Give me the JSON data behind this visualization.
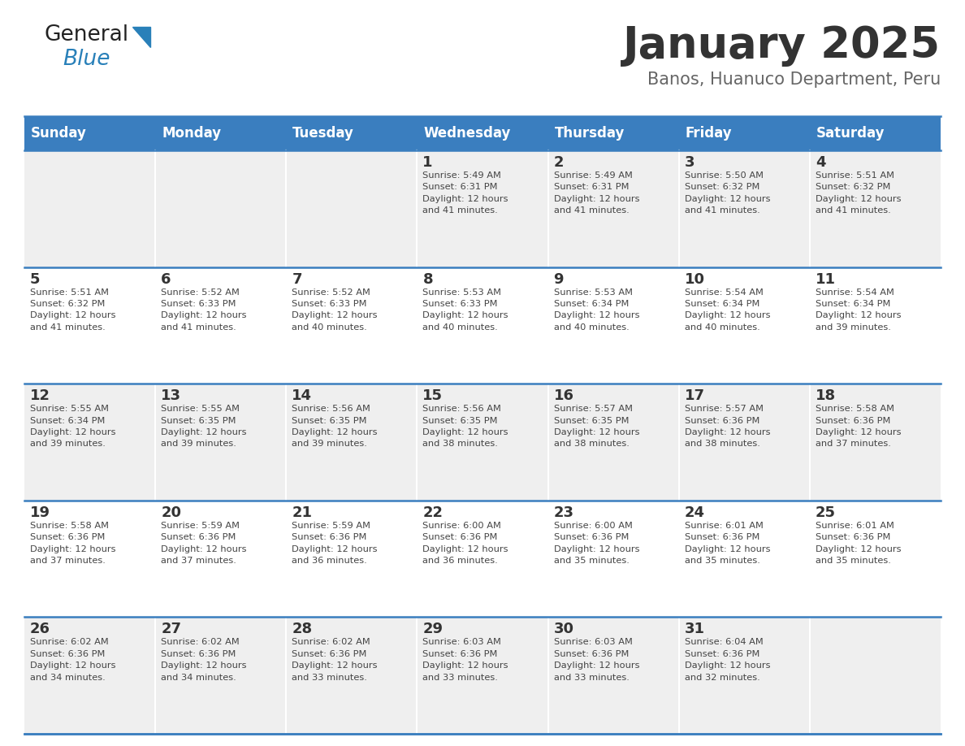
{
  "title": "January 2025",
  "subtitle": "Banos, Huanuco Department, Peru",
  "days_of_week": [
    "Sunday",
    "Monday",
    "Tuesday",
    "Wednesday",
    "Thursday",
    "Friday",
    "Saturday"
  ],
  "header_bg": "#3a7ebf",
  "header_text": "#ffffff",
  "row_bg_odd": "#efefef",
  "row_bg_even": "#ffffff",
  "separator_color": "#3a7ebf",
  "day_num_color": "#333333",
  "cell_text_color": "#444444",
  "title_color": "#333333",
  "subtitle_color": "#666666",
  "logo_general_color": "#222222",
  "logo_blue_color": "#2980b9",
  "logo_triangle_color": "#2980b9",
  "calendar_data": [
    [
      {
        "day": null,
        "info": null
      },
      {
        "day": null,
        "info": null
      },
      {
        "day": null,
        "info": null
      },
      {
        "day": 1,
        "info": "Sunrise: 5:49 AM\nSunset: 6:31 PM\nDaylight: 12 hours\nand 41 minutes."
      },
      {
        "day": 2,
        "info": "Sunrise: 5:49 AM\nSunset: 6:31 PM\nDaylight: 12 hours\nand 41 minutes."
      },
      {
        "day": 3,
        "info": "Sunrise: 5:50 AM\nSunset: 6:32 PM\nDaylight: 12 hours\nand 41 minutes."
      },
      {
        "day": 4,
        "info": "Sunrise: 5:51 AM\nSunset: 6:32 PM\nDaylight: 12 hours\nand 41 minutes."
      }
    ],
    [
      {
        "day": 5,
        "info": "Sunrise: 5:51 AM\nSunset: 6:32 PM\nDaylight: 12 hours\nand 41 minutes."
      },
      {
        "day": 6,
        "info": "Sunrise: 5:52 AM\nSunset: 6:33 PM\nDaylight: 12 hours\nand 41 minutes."
      },
      {
        "day": 7,
        "info": "Sunrise: 5:52 AM\nSunset: 6:33 PM\nDaylight: 12 hours\nand 40 minutes."
      },
      {
        "day": 8,
        "info": "Sunrise: 5:53 AM\nSunset: 6:33 PM\nDaylight: 12 hours\nand 40 minutes."
      },
      {
        "day": 9,
        "info": "Sunrise: 5:53 AM\nSunset: 6:34 PM\nDaylight: 12 hours\nand 40 minutes."
      },
      {
        "day": 10,
        "info": "Sunrise: 5:54 AM\nSunset: 6:34 PM\nDaylight: 12 hours\nand 40 minutes."
      },
      {
        "day": 11,
        "info": "Sunrise: 5:54 AM\nSunset: 6:34 PM\nDaylight: 12 hours\nand 39 minutes."
      }
    ],
    [
      {
        "day": 12,
        "info": "Sunrise: 5:55 AM\nSunset: 6:34 PM\nDaylight: 12 hours\nand 39 minutes."
      },
      {
        "day": 13,
        "info": "Sunrise: 5:55 AM\nSunset: 6:35 PM\nDaylight: 12 hours\nand 39 minutes."
      },
      {
        "day": 14,
        "info": "Sunrise: 5:56 AM\nSunset: 6:35 PM\nDaylight: 12 hours\nand 39 minutes."
      },
      {
        "day": 15,
        "info": "Sunrise: 5:56 AM\nSunset: 6:35 PM\nDaylight: 12 hours\nand 38 minutes."
      },
      {
        "day": 16,
        "info": "Sunrise: 5:57 AM\nSunset: 6:35 PM\nDaylight: 12 hours\nand 38 minutes."
      },
      {
        "day": 17,
        "info": "Sunrise: 5:57 AM\nSunset: 6:36 PM\nDaylight: 12 hours\nand 38 minutes."
      },
      {
        "day": 18,
        "info": "Sunrise: 5:58 AM\nSunset: 6:36 PM\nDaylight: 12 hours\nand 37 minutes."
      }
    ],
    [
      {
        "day": 19,
        "info": "Sunrise: 5:58 AM\nSunset: 6:36 PM\nDaylight: 12 hours\nand 37 minutes."
      },
      {
        "day": 20,
        "info": "Sunrise: 5:59 AM\nSunset: 6:36 PM\nDaylight: 12 hours\nand 37 minutes."
      },
      {
        "day": 21,
        "info": "Sunrise: 5:59 AM\nSunset: 6:36 PM\nDaylight: 12 hours\nand 36 minutes."
      },
      {
        "day": 22,
        "info": "Sunrise: 6:00 AM\nSunset: 6:36 PM\nDaylight: 12 hours\nand 36 minutes."
      },
      {
        "day": 23,
        "info": "Sunrise: 6:00 AM\nSunset: 6:36 PM\nDaylight: 12 hours\nand 35 minutes."
      },
      {
        "day": 24,
        "info": "Sunrise: 6:01 AM\nSunset: 6:36 PM\nDaylight: 12 hours\nand 35 minutes."
      },
      {
        "day": 25,
        "info": "Sunrise: 6:01 AM\nSunset: 6:36 PM\nDaylight: 12 hours\nand 35 minutes."
      }
    ],
    [
      {
        "day": 26,
        "info": "Sunrise: 6:02 AM\nSunset: 6:36 PM\nDaylight: 12 hours\nand 34 minutes."
      },
      {
        "day": 27,
        "info": "Sunrise: 6:02 AM\nSunset: 6:36 PM\nDaylight: 12 hours\nand 34 minutes."
      },
      {
        "day": 28,
        "info": "Sunrise: 6:02 AM\nSunset: 6:36 PM\nDaylight: 12 hours\nand 33 minutes."
      },
      {
        "day": 29,
        "info": "Sunrise: 6:03 AM\nSunset: 6:36 PM\nDaylight: 12 hours\nand 33 minutes."
      },
      {
        "day": 30,
        "info": "Sunrise: 6:03 AM\nSunset: 6:36 PM\nDaylight: 12 hours\nand 33 minutes."
      },
      {
        "day": 31,
        "info": "Sunrise: 6:04 AM\nSunset: 6:36 PM\nDaylight: 12 hours\nand 32 minutes."
      },
      {
        "day": null,
        "info": null
      }
    ]
  ]
}
